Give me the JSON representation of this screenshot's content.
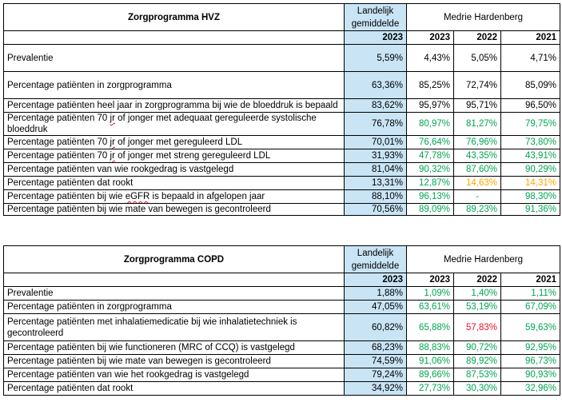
{
  "colors": {
    "green": "#00a651",
    "red": "#e8112d",
    "orange": "#ffa500",
    "national_bg": "#c8e4f5"
  },
  "hvz": {
    "title": "Zorgprogramma HVZ",
    "national_header": "Landelijk gemiddelde",
    "group_header": "Medrie Hardenberg",
    "years": [
      "2023",
      "2023",
      "2022",
      "2021"
    ],
    "rows": [
      {
        "label": "Prevalentie",
        "nat": "5,59%",
        "v": [
          "4,43%",
          "5,05%",
          "4,71%"
        ],
        "c": [
          "black",
          "black",
          "black"
        ]
      },
      {
        "label": "Percentage patiënten in zorgprogramma",
        "nat": "63,36%",
        "v": [
          "85,25%",
          "72,74%",
          "85,09%"
        ],
        "c": [
          "black",
          "black",
          "black"
        ]
      },
      {
        "label": "Percentage patiënten heel jaar in zorgprogramma bij wie de bloeddruk is bepaald",
        "nat": "83,62%",
        "v": [
          "95,97%",
          "95,71%",
          "96,50%"
        ],
        "c": [
          "black",
          "black",
          "black"
        ]
      },
      {
        "label": "Percentage patiënten 70 jr of jonger met adequaat gereguleerde systolische bloeddruk",
        "nat": "76,78%",
        "v": [
          "80,97%",
          "81,27%",
          "79,75%"
        ],
        "c": [
          "green",
          "green",
          "green"
        ]
      },
      {
        "label": "Percentage patiënten 70 jr of jonger met gereguleerd LDL",
        "nat": "70,01%",
        "v": [
          "76,64%",
          "76,96%",
          "73,80%"
        ],
        "c": [
          "green",
          "green",
          "green"
        ]
      },
      {
        "label": "Percentage patiënten 70 jr of jonger met streng gereguleerd LDL",
        "nat": "31,93%",
        "v": [
          "47,78%",
          "43,35%",
          "43,91%"
        ],
        "c": [
          "green",
          "green",
          "green"
        ]
      },
      {
        "label": "Percentage patiënten van wie rookgedrag is vastgelegd",
        "nat": "81,04%",
        "v": [
          "90,32%",
          "87,60%",
          "90,29%"
        ],
        "c": [
          "green",
          "green",
          "green"
        ]
      },
      {
        "label": "Percentage patiënten dat rookt",
        "nat": "13,31%",
        "v": [
          "12,87%",
          "14,63%",
          "14,31%"
        ],
        "c": [
          "green",
          "orange",
          "orange"
        ]
      },
      {
        "label": "Percentage patiënten bij wie eGFR is bepaald in afgelopen jaar",
        "nat": "88,10%",
        "v": [
          "96,13%",
          "-",
          "98,30%"
        ],
        "c": [
          "green",
          "green",
          "green"
        ]
      },
      {
        "label": "Percentage patiënten bij wie mate van bewegen is gecontroleerd",
        "nat": "70,56%",
        "v": [
          "89,09%",
          "89,23%",
          "91,36%"
        ],
        "c": [
          "green",
          "green",
          "green"
        ]
      }
    ]
  },
  "copd": {
    "title": "Zorgprogramma COPD",
    "national_header": "Landelijk gemiddelde",
    "group_header": "Medrie Hardenberg",
    "years": [
      "2023",
      "2023",
      "2022",
      "2021"
    ],
    "rows": [
      {
        "label": "Prevalentie",
        "nat": "1,88%",
        "v": [
          "1,09%",
          "1,40%",
          "1,11%"
        ],
        "c": [
          "green",
          "green",
          "green"
        ]
      },
      {
        "label": "Percentage patiënten in zorgprogramma",
        "nat": "47,05%",
        "v": [
          "63,61%",
          "53,19%",
          "67,09%"
        ],
        "c": [
          "green",
          "green",
          "green"
        ]
      },
      {
        "label": "Percentage patiënten met inhalatiemedicatie bij wie inhalatietechniek is gecontroleerd",
        "nat": "60,82%",
        "v": [
          "65,88%",
          "57,83%",
          "59,63%"
        ],
        "c": [
          "green",
          "red",
          "green"
        ]
      },
      {
        "label": "Percentage patiënten bij wie functioneren (MRC of CCQ) is vastgelegd",
        "nat": "68,23%",
        "v": [
          "88,83%",
          "90,72%",
          "92,95%"
        ],
        "c": [
          "green",
          "green",
          "green"
        ]
      },
      {
        "label": "Percentage patiënten bij wie mate van bewegen is gecontroleerd",
        "nat": "74,59%",
        "v": [
          "91,06%",
          "89,92%",
          "96,73%"
        ],
        "c": [
          "green",
          "green",
          "green"
        ]
      },
      {
        "label": "Percentage patiënten van wie het rookgedrag is vastgelegd",
        "nat": "79,24%",
        "v": [
          "89,66%",
          "87,53%",
          "90,93%"
        ],
        "c": [
          "green",
          "green",
          "green"
        ]
      },
      {
        "label": "Percentage patiënten dat rookt",
        "nat": "34,92%",
        "v": [
          "27,73%",
          "30,30%",
          "32,96%"
        ],
        "c": [
          "green",
          "green",
          "green"
        ]
      }
    ]
  }
}
